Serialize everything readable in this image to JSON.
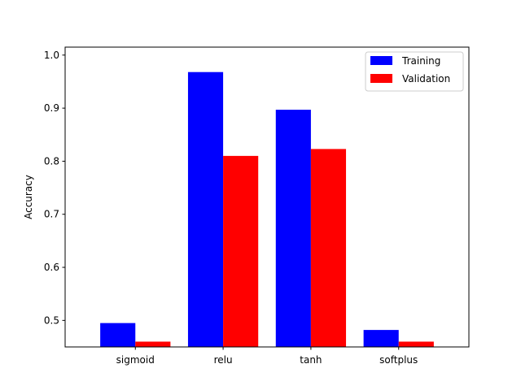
{
  "chart_data": {
    "type": "bar",
    "title": "",
    "xlabel": "",
    "ylabel": "Accuracy",
    "categories": [
      "sigmoid",
      "relu",
      "tanh",
      "softplus"
    ],
    "series": [
      {
        "name": "Training",
        "color": "#0000ff",
        "values": [
          0.495,
          0.968,
          0.897,
          0.482
        ]
      },
      {
        "name": "Validation",
        "color": "#ff0000",
        "values": [
          0.46,
          0.81,
          0.823,
          0.46
        ]
      }
    ],
    "ylim": [
      0.45,
      1.015
    ],
    "yticks": [
      "0.5",
      "0.6",
      "0.7",
      "0.8",
      "0.9",
      "1.0"
    ],
    "legend_position": "top-right",
    "grid": false
  }
}
